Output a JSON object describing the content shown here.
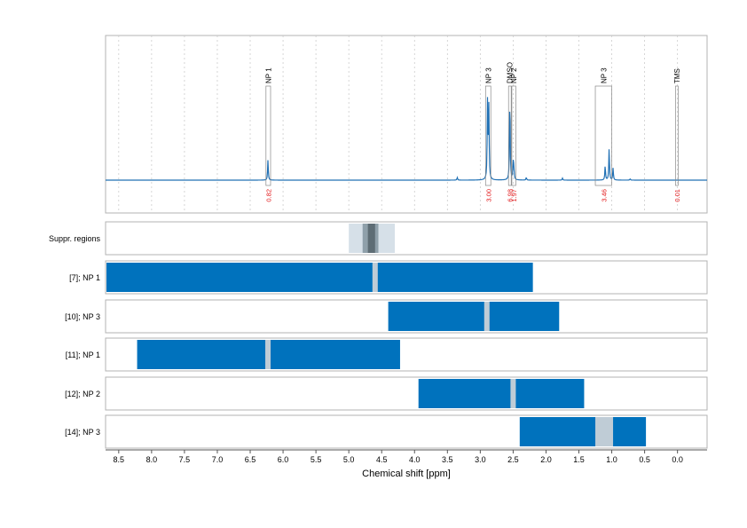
{
  "chart_data": {
    "type": "line",
    "xlabel": "Chemical shift [ppm]",
    "xlim": [
      8.7,
      -0.45
    ],
    "x_reversed": true,
    "x_ticks": [
      8.5,
      8.0,
      7.5,
      7.0,
      6.5,
      6.0,
      5.5,
      5.0,
      4.5,
      4.0,
      3.5,
      3.0,
      2.5,
      2.0,
      1.5,
      1.0,
      0.5,
      0.0
    ],
    "x_tick_labels": [
      "8.5",
      "8.0",
      "7.5",
      "7.0",
      "6.5",
      "6.0",
      "5.5",
      "5.0",
      "4.5",
      "4.0",
      "3.5",
      "3.0",
      "2.5",
      "2.0",
      "1.5",
      "1.0",
      "0.5",
      "0.0"
    ],
    "grid": "vertical dotted",
    "spectrum": {
      "peaks": [
        {
          "ppm": 6.23,
          "height": 0.15
        },
        {
          "ppm": 2.89,
          "height": 0.58
        },
        {
          "ppm": 2.87,
          "height": 0.54
        },
        {
          "ppm": 2.55,
          "height": 0.62
        },
        {
          "ppm": 2.5,
          "height": 0.12
        },
        {
          "ppm": 2.49,
          "height": 0.09
        },
        {
          "ppm": 1.1,
          "height": 0.11
        },
        {
          "ppm": 1.04,
          "height": 0.24
        },
        {
          "ppm": 0.98,
          "height": 0.09
        },
        {
          "ppm": 3.35,
          "height": 0.02
        },
        {
          "ppm": 2.3,
          "height": 0.02
        },
        {
          "ppm": 1.75,
          "height": 0.015
        },
        {
          "ppm": 0.72,
          "height": 0.01
        }
      ]
    },
    "annotations": [
      {
        "label": "NP 1",
        "from": 6.26,
        "to": 6.19,
        "integral": "0.82"
      },
      {
        "label": "NP 3",
        "from": 2.92,
        "to": 2.84,
        "integral": "3.00"
      },
      {
        "label": "DMSO",
        "from": 2.57,
        "to": 2.53,
        "integral": "6.98"
      },
      {
        "label": "NP 2",
        "from": 2.52,
        "to": 2.46,
        "integral": "1.97"
      },
      {
        "label": "NP 3",
        "from": 1.25,
        "to": 1.0,
        "integral": "3.46"
      },
      {
        "label": "TMS",
        "from": 0.03,
        "to": -0.01,
        "integral": "0.01"
      }
    ],
    "suppression": {
      "label": "Suppr. regions",
      "outer": [
        5.0,
        4.3
      ],
      "middle": [
        4.79,
        4.55
      ],
      "inner": [
        4.71,
        4.6
      ]
    },
    "windows": [
      {
        "label": "[7]; NP 1",
        "from": 8.7,
        "to": 2.2,
        "marker": 4.6
      },
      {
        "label": "[10]; NP 3",
        "from": 4.4,
        "to": 1.8,
        "marker": 2.9
      },
      {
        "label": "[11]; NP 1",
        "from": 8.22,
        "to": 4.22,
        "marker": 6.23
      },
      {
        "label": "[12]; NP 2",
        "from": 3.94,
        "to": 1.42,
        "marker": 2.5
      },
      {
        "label": "[14]; NP 3",
        "from": 2.4,
        "to": 0.48,
        "marker_from": 1.25,
        "marker_to": 0.98
      }
    ],
    "colors": {
      "spectrum": "#2171b5",
      "window": "#0072bd",
      "marker": "#bfccd6",
      "integral": "#e31a1c",
      "supp_outer": "#d6e0e8",
      "supp_middle": "#8fa0aa",
      "supp_inner": "#5e6d75",
      "panel_border": "#b3b3b3",
      "grid": "#cccccc"
    }
  }
}
